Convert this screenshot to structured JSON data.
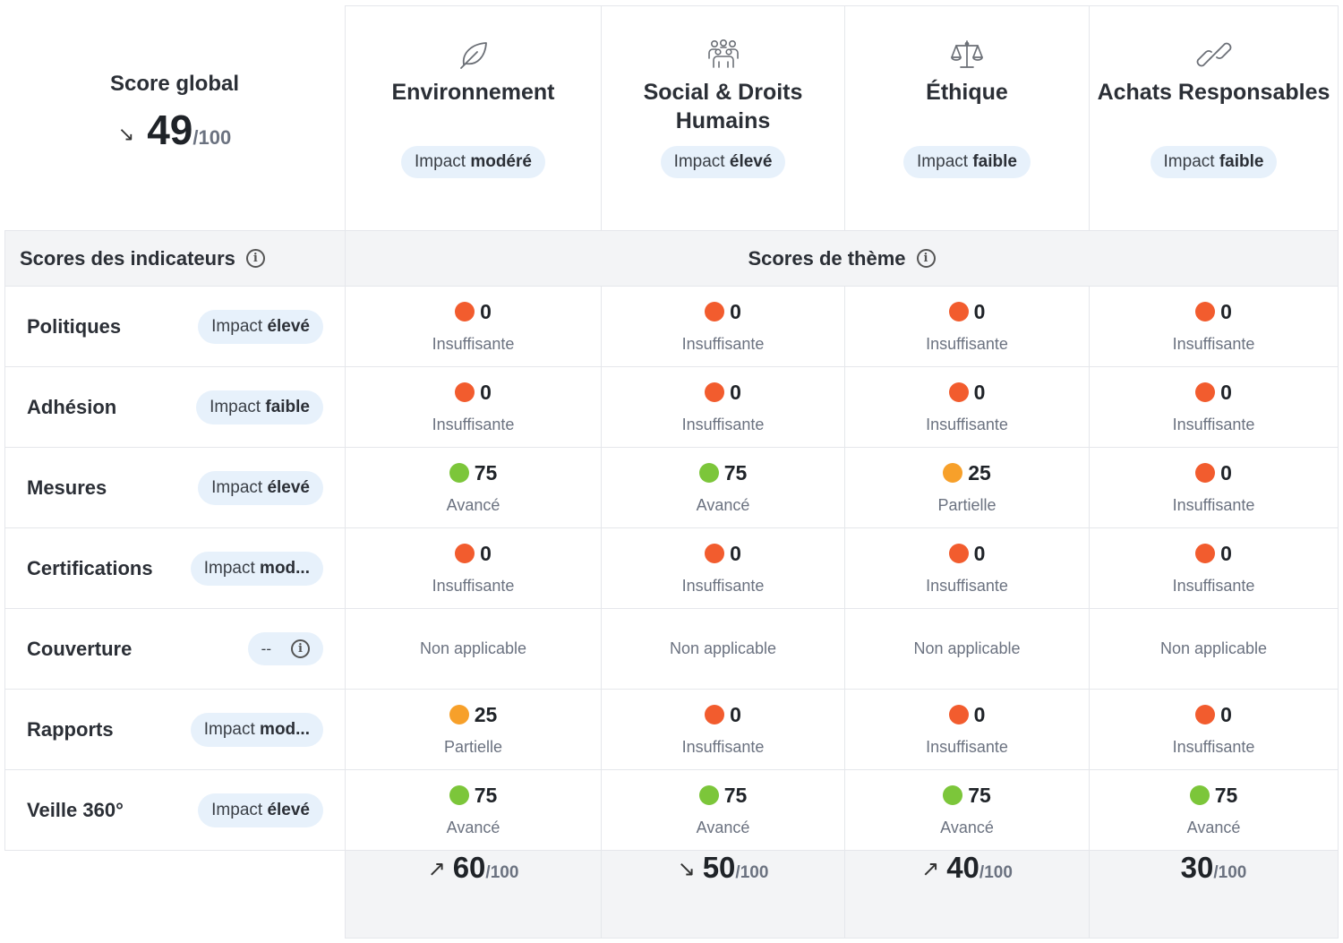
{
  "global": {
    "title": "Score global",
    "trend": "↘",
    "score": "49",
    "suffix": "/100"
  },
  "themes": [
    {
      "name": "Environnement",
      "icon": "leaf-icon",
      "impact_prefix": "Impact",
      "impact_level": "modéré"
    },
    {
      "name": "Social & Droits Humains",
      "icon": "people-icon",
      "impact_prefix": "Impact",
      "impact_level": "élevé"
    },
    {
      "name": "Éthique",
      "icon": "scales-icon",
      "impact_prefix": "Impact",
      "impact_level": "faible"
    },
    {
      "name": "Achats Responsables",
      "icon": "link-icon",
      "impact_prefix": "Impact",
      "impact_level": "faible"
    }
  ],
  "section": {
    "left_title": "Scores des indicateurs",
    "right_title": "Scores de thème"
  },
  "colors": {
    "red": "#f25c2e",
    "orange": "#f7a02a",
    "green": "#7cc63a",
    "pill": "#e7f1fb",
    "header_bg": "#f3f4f6"
  },
  "indicators": [
    {
      "name": "Politiques",
      "impact_prefix": "Impact",
      "impact_level": "élevé",
      "cells": [
        {
          "value": "0",
          "label": "Insuffisante",
          "color": "red"
        },
        {
          "value": "0",
          "label": "Insuffisante",
          "color": "red"
        },
        {
          "value": "0",
          "label": "Insuffisante",
          "color": "red"
        },
        {
          "value": "0",
          "label": "Insuffisante",
          "color": "red"
        }
      ]
    },
    {
      "name": "Adhésion",
      "impact_prefix": "Impact",
      "impact_level": "faible",
      "cells": [
        {
          "value": "0",
          "label": "Insuffisante",
          "color": "red"
        },
        {
          "value": "0",
          "label": "Insuffisante",
          "color": "red"
        },
        {
          "value": "0",
          "label": "Insuffisante",
          "color": "red"
        },
        {
          "value": "0",
          "label": "Insuffisante",
          "color": "red"
        }
      ]
    },
    {
      "name": "Mesures",
      "impact_prefix": "Impact",
      "impact_level": "élevé",
      "cells": [
        {
          "value": "75",
          "label": "Avancé",
          "color": "green"
        },
        {
          "value": "75",
          "label": "Avancé",
          "color": "green"
        },
        {
          "value": "25",
          "label": "Partielle",
          "color": "orange"
        },
        {
          "value": "0",
          "label": "Insuffisante",
          "color": "red"
        }
      ]
    },
    {
      "name": "Certifications",
      "impact_prefix": "Impact",
      "impact_level": "mod...",
      "cells": [
        {
          "value": "0",
          "label": "Insuffisante",
          "color": "red"
        },
        {
          "value": "0",
          "label": "Insuffisante",
          "color": "red"
        },
        {
          "value": "0",
          "label": "Insuffisante",
          "color": "red"
        },
        {
          "value": "0",
          "label": "Insuffisante",
          "color": "red"
        }
      ]
    },
    {
      "name": "Couverture",
      "impact_dash": "--",
      "cells": [
        {
          "na": "Non applicable"
        },
        {
          "na": "Non applicable"
        },
        {
          "na": "Non applicable"
        },
        {
          "na": "Non applicable"
        }
      ]
    },
    {
      "name": "Rapports",
      "impact_prefix": "Impact",
      "impact_level": "mod...",
      "cells": [
        {
          "value": "25",
          "label": "Partielle",
          "color": "orange"
        },
        {
          "value": "0",
          "label": "Insuffisante",
          "color": "red"
        },
        {
          "value": "0",
          "label": "Insuffisante",
          "color": "red"
        },
        {
          "value": "0",
          "label": "Insuffisante",
          "color": "red"
        }
      ]
    },
    {
      "name": "Veille 360°",
      "impact_prefix": "Impact",
      "impact_level": "élevé",
      "cells": [
        {
          "value": "75",
          "label": "Avancé",
          "color": "green"
        },
        {
          "value": "75",
          "label": "Avancé",
          "color": "green"
        },
        {
          "value": "75",
          "label": "Avancé",
          "color": "green"
        },
        {
          "value": "75",
          "label": "Avancé",
          "color": "green"
        }
      ]
    }
  ],
  "totals": [
    {
      "trend": "↗",
      "score": "60",
      "suffix": "/100"
    },
    {
      "trend": "↘",
      "score": "50",
      "suffix": "/100"
    },
    {
      "trend": "↗",
      "score": "40",
      "suffix": "/100"
    },
    {
      "trend": "",
      "score": "30",
      "suffix": "/100"
    }
  ]
}
